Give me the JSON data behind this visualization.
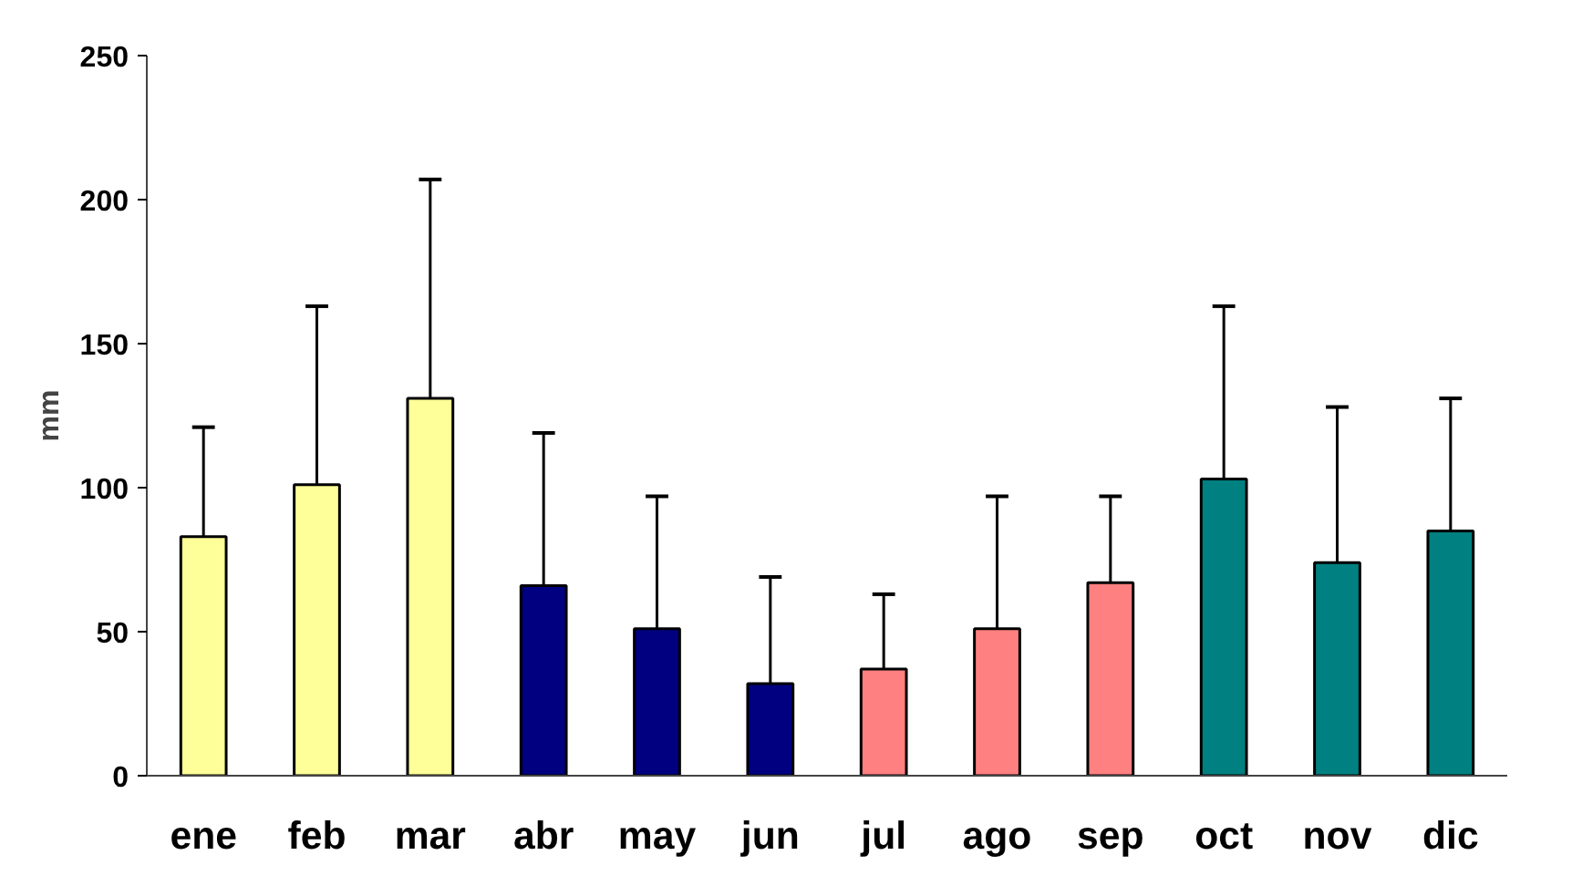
{
  "chart_data": {
    "type": "bar",
    "ylabel": "mm",
    "categories": [
      "ene",
      "feb",
      "mar",
      "abr",
      "may",
      "jun",
      "jul",
      "ago",
      "sep",
      "oct",
      "nov",
      "dic"
    ],
    "values": [
      83,
      101,
      131,
      66,
      51,
      32,
      37,
      51,
      67,
      103,
      74,
      85
    ],
    "colors": [
      "#ffff99",
      "#ffff99",
      "#ffff99",
      "#000080",
      "#000080",
      "#000080",
      "#ff8080",
      "#ff8080",
      "#ff8080",
      "#008080",
      "#008080",
      "#008080"
    ],
    "errors": [
      [
        83,
        121
      ],
      [
        101,
        163
      ],
      [
        131,
        207
      ],
      [
        66,
        119
      ],
      [
        51,
        97
      ],
      [
        32,
        69
      ],
      [
        37,
        63
      ],
      [
        51,
        97
      ],
      [
        67,
        97
      ],
      [
        103,
        163
      ],
      [
        74,
        128
      ],
      [
        85,
        131
      ]
    ],
    "ylim": [
      0,
      250
    ],
    "yticks": [
      0,
      50,
      100,
      150,
      200,
      250
    ],
    "grid": false
  }
}
